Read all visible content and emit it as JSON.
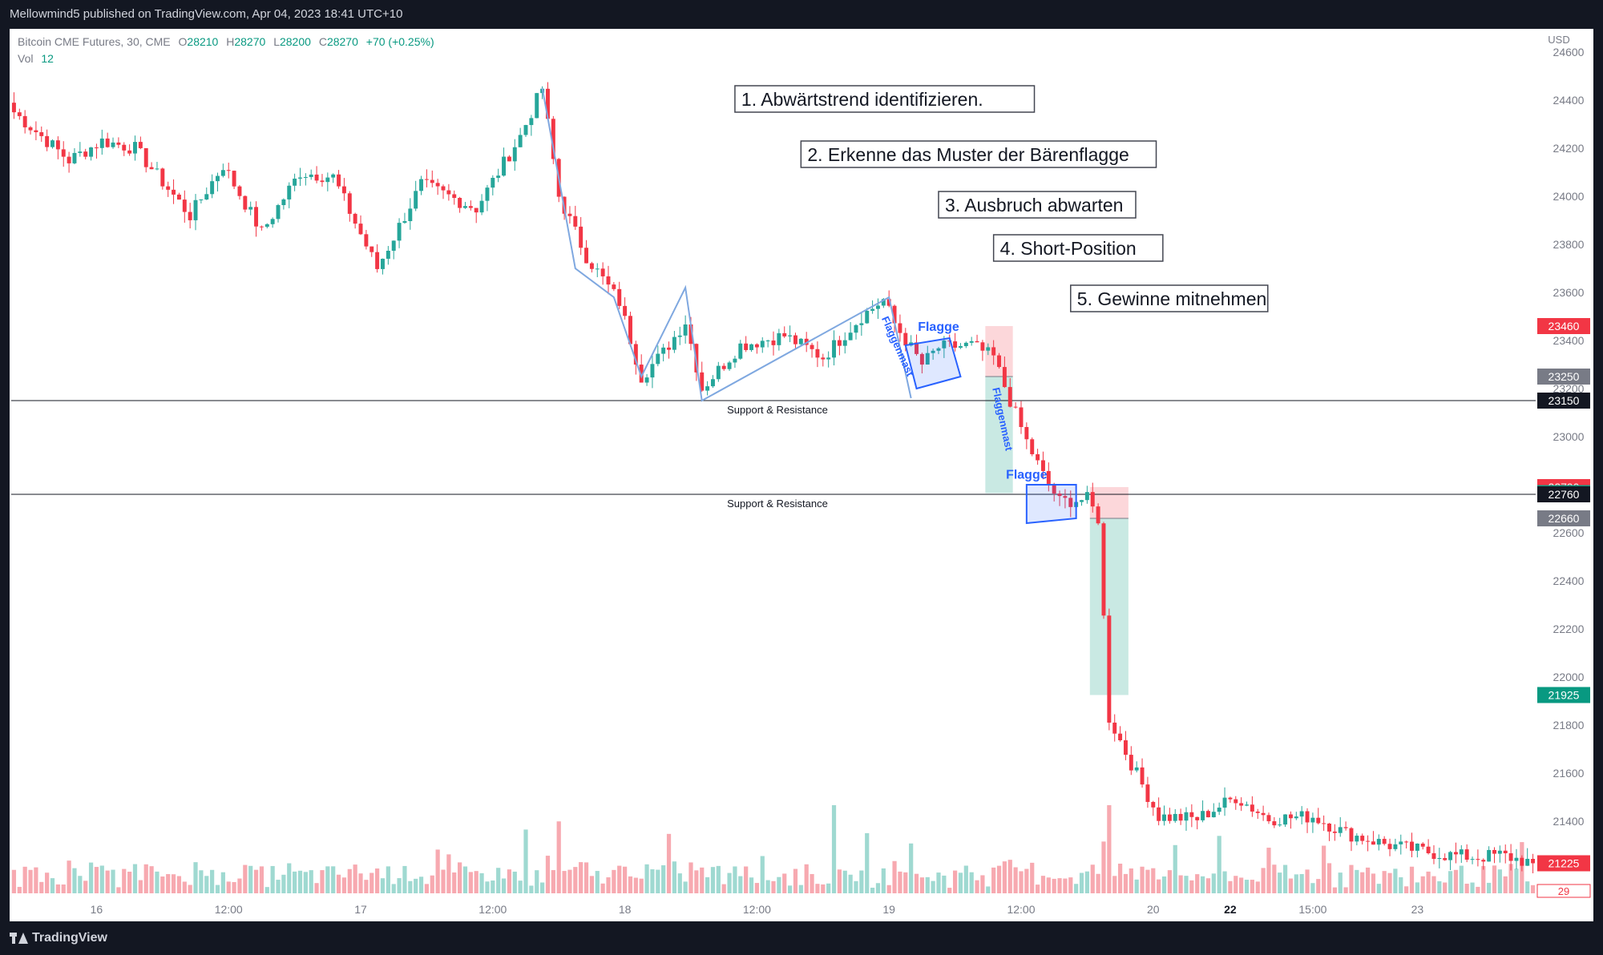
{
  "header": {
    "published": "Mellowmind5 published on TradingView.com, Apr 04, 2023 18:41 UTC+10"
  },
  "legend": {
    "symbol": "Bitcoin CME Futures, 30, CME",
    "o_label": "O",
    "o_value": "28210",
    "h_label": "H",
    "h_value": "28270",
    "l_label": "L",
    "l_value": "28200",
    "c_label": "C",
    "c_value": "28270",
    "change": "+70 (+0.25%)",
    "vol_label": "Vol",
    "vol_value": "12"
  },
  "footer": {
    "brand": "TradingView"
  },
  "colors": {
    "up": "#26a69a",
    "down": "#f23645",
    "vol_up": "#9fd9d1",
    "vol_down": "#f7a9b0"
  },
  "chart_data": {
    "type": "candlestick",
    "currency": "USD",
    "ylim": [
      21100,
      24650
    ],
    "y_ticks": [
      21400,
      21600,
      21800,
      22000,
      22200,
      22400,
      22600,
      22800,
      23000,
      23200,
      23400,
      23600,
      23800,
      24000,
      24200,
      24400,
      24600
    ],
    "x_ticks": [
      {
        "i": 15,
        "label": "16",
        "bold": false
      },
      {
        "i": 39,
        "label": "12:00",
        "bold": false
      },
      {
        "i": 63,
        "label": "17",
        "bold": false
      },
      {
        "i": 87,
        "label": "12:00",
        "bold": false
      },
      {
        "i": 111,
        "label": "18",
        "bold": false
      },
      {
        "i": 135,
        "label": "12:00",
        "bold": false
      },
      {
        "i": 159,
        "label": "19",
        "bold": false
      },
      {
        "i": 183,
        "label": "12:00",
        "bold": false
      },
      {
        "i": 207,
        "label": "20",
        "bold": false
      },
      {
        "i": 221,
        "label": "22",
        "bold": true
      },
      {
        "i": 236,
        "label": "15:00",
        "bold": false
      },
      {
        "i": 255,
        "label": "23",
        "bold": false
      }
    ],
    "candle_count": 277,
    "pivots": [
      [
        0,
        24350
      ],
      [
        10,
        24150
      ],
      [
        16,
        24230
      ],
      [
        22,
        24200
      ],
      [
        32,
        23920
      ],
      [
        38,
        24130
      ],
      [
        45,
        23850
      ],
      [
        52,
        24100
      ],
      [
        58,
        24080
      ],
      [
        66,
        23700
      ],
      [
        74,
        24050
      ],
      [
        84,
        23950
      ],
      [
        92,
        24250
      ],
      [
        96,
        24450
      ],
      [
        99,
        24000
      ],
      [
        104,
        23750
      ],
      [
        110,
        23560
      ],
      [
        114,
        23250
      ],
      [
        118,
        23350
      ],
      [
        122,
        23480
      ],
      [
        125,
        23200
      ],
      [
        132,
        23380
      ],
      [
        140,
        23420
      ],
      [
        147,
        23330
      ],
      [
        154,
        23500
      ],
      [
        158,
        23570
      ],
      [
        160,
        23470
      ],
      [
        165,
        23300
      ],
      [
        168,
        23370
      ],
      [
        174,
        23380
      ],
      [
        178,
        23330
      ],
      [
        181,
        23150
      ],
      [
        184,
        22980
      ],
      [
        187,
        22840
      ],
      [
        190,
        22730
      ],
      [
        195,
        22740
      ],
      [
        197,
        22660
      ],
      [
        199,
        21830
      ],
      [
        203,
        21640
      ],
      [
        208,
        21420
      ],
      [
        215,
        21410
      ],
      [
        222,
        21500
      ],
      [
        228,
        21410
      ],
      [
        236,
        21420
      ],
      [
        242,
        21350
      ],
      [
        250,
        21300
      ],
      [
        260,
        21260
      ],
      [
        266,
        21250
      ],
      [
        270,
        21260
      ],
      [
        276,
        21225
      ]
    ],
    "price_labels": [
      {
        "value": 23460,
        "label": "23460",
        "color": "#f23645"
      },
      {
        "value": 23250,
        "label": "23250",
        "color": "#787b86"
      },
      {
        "value": 23150,
        "label": "23150",
        "color": "#131722"
      },
      {
        "value": 22790,
        "label": "22790",
        "color": "#f23645"
      },
      {
        "value": 22765,
        "label": "22765",
        "color": "#089981"
      },
      {
        "value": 22760,
        "label": "22760",
        "color": "#131722"
      },
      {
        "value": 22660,
        "label": "22660",
        "color": "#787b86"
      },
      {
        "value": 21925,
        "label": "21925",
        "color": "#089981"
      },
      {
        "value": 21225,
        "label": "21225",
        "color": "#f23645"
      }
    ],
    "vol_last_label": "29",
    "support_resistance": [
      {
        "value": 23150,
        "label": "Support & Resistance"
      },
      {
        "value": 22760,
        "label": "Support & Resistance"
      }
    ],
    "annotations": [
      {
        "text": "1. Abwärtstrend identifizieren.",
        "i": 131,
        "y": 24400
      },
      {
        "text": "2. Erkenne das Muster der Bärenflagge",
        "i": 143,
        "y": 24170
      },
      {
        "text": "3. Ausbruch abwarten",
        "i": 168,
        "y": 23960
      },
      {
        "text": "4. Short-Position",
        "i": 178,
        "y": 23780
      },
      {
        "text": "5. Gewinne mitnehmen",
        "i": 192,
        "y": 23570
      }
    ],
    "pattern_labels": [
      {
        "text": "Flagge",
        "i": 168,
        "y": 23440,
        "rotate": 0
      },
      {
        "text": "Flaggenmast",
        "i": 160,
        "y": 23370,
        "rotate": 66
      },
      {
        "text": "Flagge",
        "i": 184,
        "y": 22825,
        "rotate": 0
      },
      {
        "text": "Flaggenmast",
        "i": 179,
        "y": 23070,
        "rotate": 78
      }
    ],
    "trades": [
      {
        "start": 177,
        "end": 181,
        "entry": 23250,
        "stop": 23460,
        "target": 22765
      },
      {
        "start": 196,
        "end": 202,
        "entry": 22660,
        "stop": 22790,
        "target": 21925
      }
    ],
    "trend_path": [
      [
        96,
        24450
      ],
      [
        102,
        23700
      ],
      [
        109,
        23580
      ],
      [
        114,
        23250
      ],
      [
        122,
        23620
      ],
      [
        125,
        23150
      ],
      [
        159,
        23580
      ],
      [
        163,
        23160
      ]
    ],
    "flag1": [
      [
        164,
        23200
      ],
      [
        172,
        23250
      ],
      [
        170,
        23410
      ],
      [
        162,
        23380
      ]
    ],
    "flag2": [
      [
        184,
        22640
      ],
      [
        193,
        22660
      ],
      [
        193,
        22800
      ],
      [
        184,
        22800
      ]
    ]
  }
}
